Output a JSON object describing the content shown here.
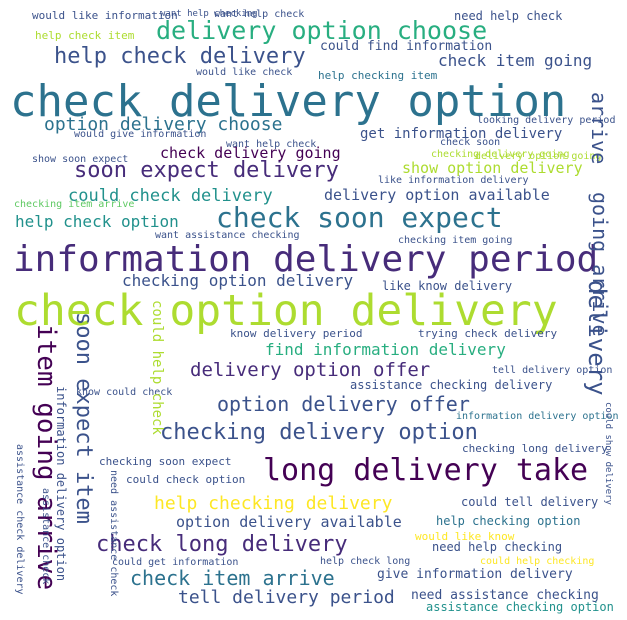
{
  "colors": {
    "background": "#ffffff",
    "palette": [
      "#440154",
      "#472c7a",
      "#3b528b",
      "#2c728e",
      "#21918c",
      "#28ae80",
      "#5ec962",
      "#addc30",
      "#fde725"
    ]
  },
  "partial_top_text": "",
  "words": [
    {
      "id": "w1",
      "text": "check delivery option",
      "color": "#2c728e"
    },
    {
      "id": "w2",
      "text": "check option delivery",
      "color": "#addc30"
    },
    {
      "id": "w3",
      "text": "information delivery period",
      "color": "#472c7a"
    },
    {
      "id": "w4",
      "text": "check soon expect",
      "color": "#2c728e"
    },
    {
      "id": "w5",
      "text": "long delivery take",
      "color": "#440154"
    },
    {
      "id": "w6",
      "text": "delivery option choose",
      "color": "#28ae80"
    },
    {
      "id": "w7",
      "text": "help check delivery",
      "color": "#3b528b"
    },
    {
      "id": "w8",
      "text": "soon expect delivery",
      "color": "#472c7a"
    },
    {
      "id": "w9",
      "text": "checking delivery option",
      "color": "#3b528b"
    },
    {
      "id": "w10",
      "text": "option delivery offer",
      "color": "#3b528b"
    },
    {
      "id": "w11",
      "text": "check long delivery",
      "color": "#472c7a"
    },
    {
      "id": "w12",
      "text": "check item arrive",
      "color": "#2c728e"
    },
    {
      "id": "w13",
      "text": "delivery option offer",
      "color": "#472c7a"
    },
    {
      "id": "w14",
      "text": "help checking delivery",
      "color": "#fde725"
    },
    {
      "id": "w15",
      "text": "option delivery choose",
      "color": "#2c728e"
    },
    {
      "id": "w16",
      "text": "could check delivery",
      "color": "#21918c"
    },
    {
      "id": "w17",
      "text": "tell delivery period",
      "color": "#3b528b"
    },
    {
      "id": "w18",
      "text": "find information delivery",
      "color": "#28ae80"
    },
    {
      "id": "w19",
      "text": "check item going",
      "color": "#3b528b"
    },
    {
      "id": "w20",
      "text": "checking option delivery",
      "color": "#3b528b"
    },
    {
      "id": "w21",
      "text": "help check option",
      "color": "#21918c"
    },
    {
      "id": "w22",
      "text": "delivery option available",
      "color": "#3b528b"
    },
    {
      "id": "w23",
      "text": "check delivery going",
      "color": "#440154"
    },
    {
      "id": "w24",
      "text": "option delivery available",
      "color": "#3b528b"
    },
    {
      "id": "w25",
      "text": "show option delivery",
      "color": "#addc30"
    },
    {
      "id": "w26",
      "text": "get information delivery",
      "color": "#3b528b"
    },
    {
      "id": "w27",
      "text": "need help checking",
      "color": "#3b528b"
    },
    {
      "id": "w28",
      "text": "give information delivery",
      "color": "#3b528b"
    },
    {
      "id": "w29",
      "text": "could find information",
      "color": "#3b528b"
    },
    {
      "id": "w30",
      "text": "need assistance checking",
      "color": "#3b528b"
    },
    {
      "id": "w31",
      "text": "assistance checking option",
      "color": "#21918c"
    },
    {
      "id": "w32",
      "text": "help checking option",
      "color": "#2c728e"
    },
    {
      "id": "w33",
      "text": "could tell delivery",
      "color": "#3b528b"
    },
    {
      "id": "w34",
      "text": "assistance checking delivery",
      "color": "#3b528b"
    },
    {
      "id": "w35",
      "text": "know delivery period",
      "color": "#3b528b"
    },
    {
      "id": "w36",
      "text": "like know delivery",
      "color": "#3b528b"
    },
    {
      "id": "w37",
      "text": "trying check delivery",
      "color": "#3b528b"
    },
    {
      "id": "w38",
      "text": "checking soon expect",
      "color": "#3b528b"
    },
    {
      "id": "w39",
      "text": "could check option",
      "color": "#3b528b"
    },
    {
      "id": "w40",
      "text": "would like know",
      "color": "#fde725"
    },
    {
      "id": "w41",
      "text": "checking long delivery",
      "color": "#3b528b"
    },
    {
      "id": "w42",
      "text": "need help check",
      "color": "#3b528b"
    },
    {
      "id": "w43",
      "text": "help checking item",
      "color": "#2c728e"
    },
    {
      "id": "w44",
      "text": "help check item",
      "color": "#addc30"
    },
    {
      "id": "w45",
      "text": "want help check",
      "color": "#3b528b"
    },
    {
      "id": "w46",
      "text": "would give information",
      "color": "#3b528b"
    },
    {
      "id": "w47",
      "text": "show soon expect",
      "color": "#3b528b"
    },
    {
      "id": "w48",
      "text": "checking item arrive",
      "color": "#5ec962"
    },
    {
      "id": "w49",
      "text": "want assistance checking",
      "color": "#3b528b"
    },
    {
      "id": "w50",
      "text": "checking item going",
      "color": "#3b528b"
    },
    {
      "id": "w51",
      "text": "like information delivery",
      "color": "#3b528b"
    },
    {
      "id": "w52",
      "text": "would like check",
      "color": "#3b528b"
    },
    {
      "id": "w53",
      "text": "would like information",
      "color": "#3b528b"
    },
    {
      "id": "w54",
      "text": "want help checking",
      "color": "#3b528b"
    },
    {
      "id": "w55",
      "text": "looking delivery period",
      "color": "#3b528b"
    },
    {
      "id": "w56",
      "text": "check soon",
      "color": "#3b528b"
    },
    {
      "id": "w57",
      "text": "tell delivery option",
      "color": "#3b528b"
    },
    {
      "id": "w58",
      "text": "information delivery option",
      "color": "#2c728e"
    },
    {
      "id": "w59",
      "text": "could get information",
      "color": "#3b528b"
    },
    {
      "id": "w60",
      "text": "could help checking",
      "color": "#fde725"
    },
    {
      "id": "w61",
      "text": "help check long",
      "color": "#3b528b"
    },
    {
      "id": "w62",
      "text": "delivery option going",
      "color": "#addc30"
    },
    {
      "id": "w63",
      "text": "checking delivery going",
      "color": "#addc30"
    },
    {
      "id": "w64",
      "text": "want help check",
      "color": "#3b528b"
    },
    {
      "id": "w65",
      "text": "know could check",
      "color": "#3b528b"
    },
    {
      "id": "w66",
      "text": "arrive",
      "color": "#3b528b"
    },
    {
      "id": "w67",
      "text": "going arrive",
      "color": "#3b528b"
    },
    {
      "id": "w68",
      "text": "delivery",
      "color": "#3b528b"
    },
    {
      "id": "w69",
      "text": "item going arrive",
      "color": "#440154"
    },
    {
      "id": "w70",
      "text": "soon expect item",
      "color": "#3b528b"
    },
    {
      "id": "w71",
      "text": "information delivery option",
      "color": "#3b528b"
    },
    {
      "id": "w72",
      "text": "assistance check delivery",
      "color": "#3b528b"
    },
    {
      "id": "w73",
      "text": "assistance check",
      "color": "#3b528b"
    },
    {
      "id": "w74",
      "text": "could help check",
      "color": "#addc30"
    },
    {
      "id": "w75",
      "text": "could show delivery",
      "color": "#3b528b"
    },
    {
      "id": "w76",
      "text": "need assistance check",
      "color": "#3b528b"
    }
  ]
}
